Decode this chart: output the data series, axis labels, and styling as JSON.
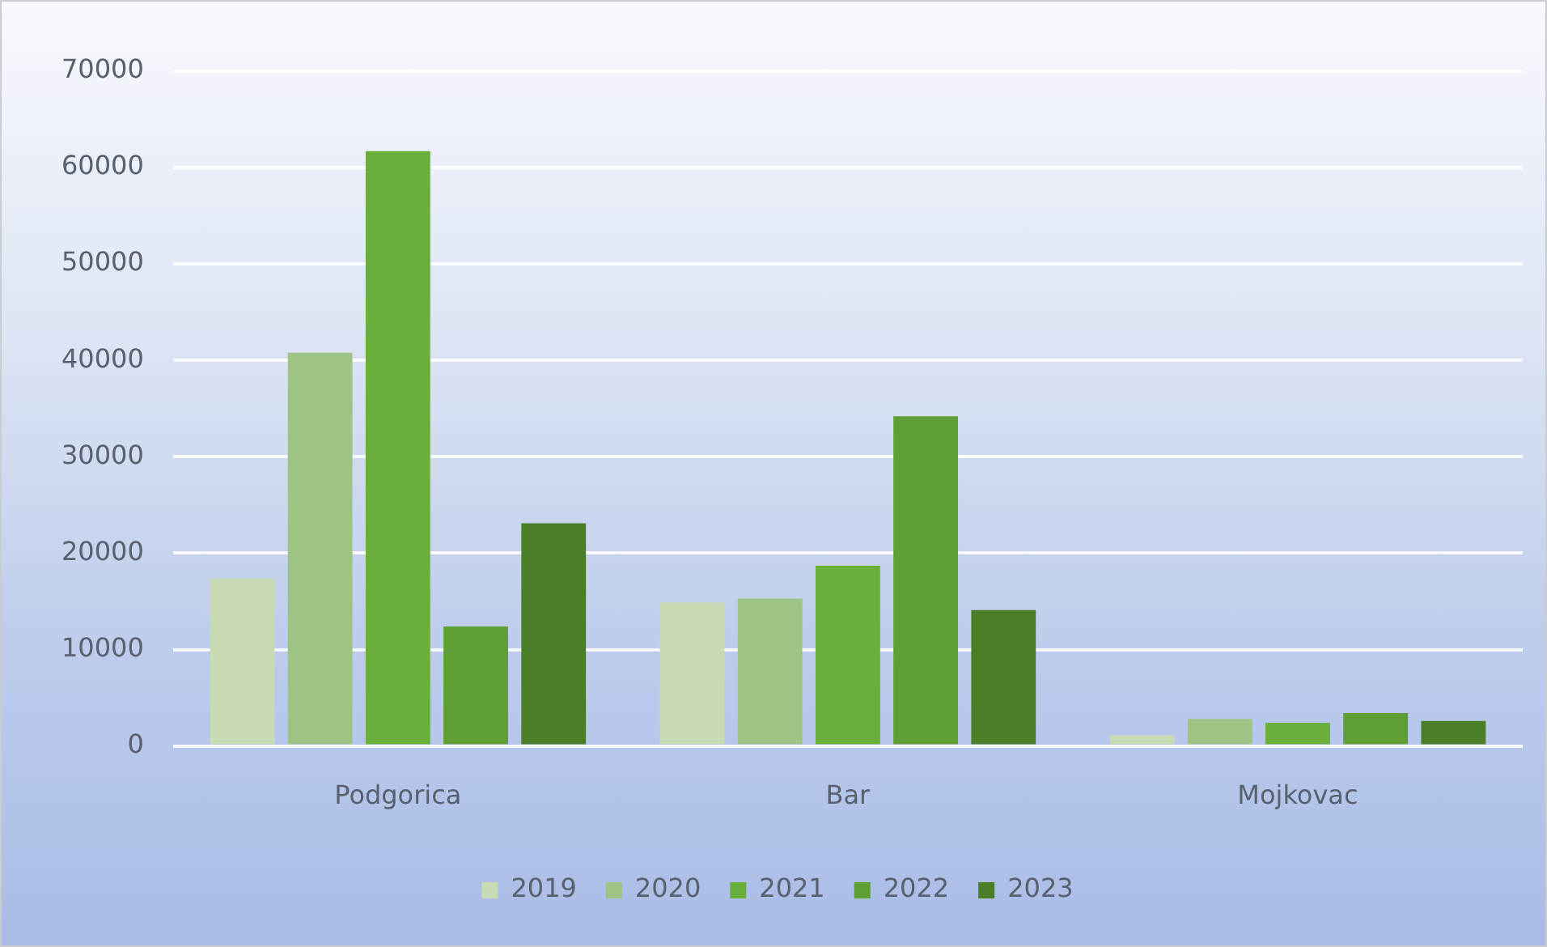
{
  "chart_data": {
    "type": "bar",
    "categories": [
      "Podgorica",
      "Bar",
      "Mojkovac"
    ],
    "series": [
      {
        "name": "2019",
        "color": "#c8dbb4",
        "values": [
          17400,
          14900,
          1100
        ]
      },
      {
        "name": "2020",
        "color": "#9ec485",
        "values": [
          40800,
          15300,
          2800
        ]
      },
      {
        "name": "2021",
        "color": "#6aaf3c",
        "values": [
          61700,
          18700,
          2400
        ]
      },
      {
        "name": "2022",
        "color": "#5f9e35",
        "values": [
          12400,
          34200,
          3400
        ]
      },
      {
        "name": "2023",
        "color": "#4a7f28",
        "values": [
          23100,
          14100,
          2600
        ]
      }
    ],
    "ylim": [
      0,
      70000
    ],
    "yticks": [
      0,
      10000,
      20000,
      30000,
      40000,
      50000,
      60000,
      70000
    ],
    "grid": "y",
    "legend": "bottom"
  }
}
